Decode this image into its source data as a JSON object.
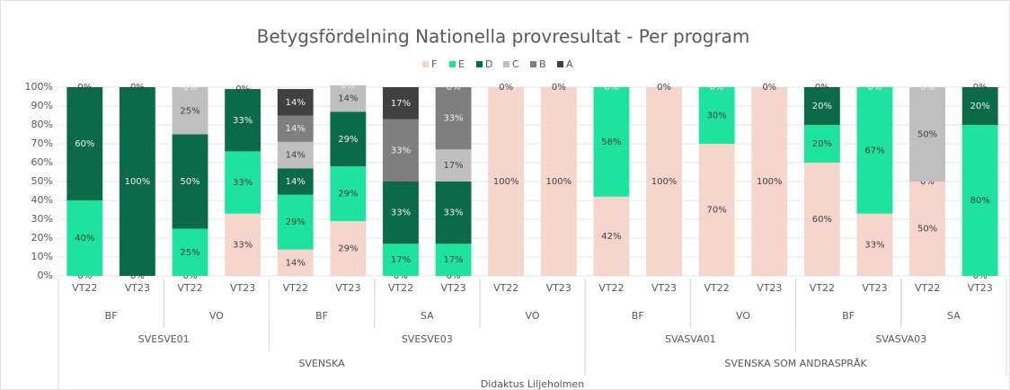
{
  "chart_data": {
    "type": "stacked_bar",
    "title": "Betygsfördelning Nationella provresultat - Per program",
    "outer_label": "Didaktus Liljeholmen",
    "ylim": [
      0,
      100
    ],
    "yticks": [
      {
        "value": 0,
        "label": "0%"
      },
      {
        "value": 10,
        "label": "10%"
      },
      {
        "value": 20,
        "label": "20%"
      },
      {
        "value": 30,
        "label": "30%"
      },
      {
        "value": 40,
        "label": "40%"
      },
      {
        "value": 50,
        "label": "50%"
      },
      {
        "value": 60,
        "label": "60%"
      },
      {
        "value": 70,
        "label": "70%"
      },
      {
        "value": 80,
        "label": "80%"
      },
      {
        "value": 90,
        "label": "90%"
      },
      {
        "value": 100,
        "label": "100%"
      }
    ],
    "legend": "top",
    "groups": [
      {
        "name": "SVENSKA",
        "children": [
          {
            "name": "SVESVE01",
            "children": [
              {
                "name": "BF",
                "categories": [
                  "VT22",
                  "VT23"
                ]
              },
              {
                "name": "VO",
                "categories": [
                  "VT22",
                  "VT23"
                ]
              }
            ]
          },
          {
            "name": "SVESVE03",
            "children": [
              {
                "name": "BF",
                "categories": [
                  "VT22",
                  "VT23"
                ]
              },
              {
                "name": "SA",
                "categories": [
                  "VT22",
                  "VT23"
                ]
              },
              {
                "name": "VO",
                "categories": [
                  "VT22",
                  "VT23"
                ]
              }
            ]
          }
        ]
      },
      {
        "name": "SVENSKA SOM ANDRASPRÅK",
        "children": [
          {
            "name": "SVASVA01",
            "children": [
              {
                "name": "BF",
                "categories": [
                  "VT22",
                  "VT23"
                ]
              },
              {
                "name": "VO",
                "categories": [
                  "VT22",
                  "VT23"
                ]
              }
            ]
          },
          {
            "name": "SVASVA03",
            "children": [
              {
                "name": "BF",
                "categories": [
                  "VT22",
                  "VT23"
                ]
              },
              {
                "name": "SA",
                "categories": [
                  "VT22",
                  "VT23"
                ]
              }
            ]
          }
        ]
      }
    ],
    "series": [
      {
        "name": "F",
        "color": "#f5d5cc",
        "values": [
          0,
          0,
          0,
          33,
          14,
          29,
          0,
          0,
          100,
          100,
          42,
          100,
          70,
          100,
          60,
          33,
          50,
          0
        ],
        "value_labels": [
          "0%",
          "0%",
          "0%",
          "33%",
          "14%",
          "29%",
          "0%",
          "0%",
          "100%",
          "100%",
          "42%",
          "100%",
          "70%",
          "100%",
          "60%",
          "33%",
          "50%",
          "0%"
        ]
      },
      {
        "name": "E",
        "color": "#1de39e",
        "values": [
          40,
          0,
          25,
          33,
          29,
          29,
          17,
          17,
          0,
          0,
          58,
          0,
          30,
          0,
          20,
          67,
          0,
          80
        ],
        "value_labels": [
          "40%",
          null,
          "25%",
          "33%",
          "29%",
          "29%",
          "17%",
          "17%",
          "0%",
          "0%",
          "58%",
          "0%",
          "30%",
          "0%",
          "20%",
          "67%",
          "0%",
          "80%"
        ]
      },
      {
        "name": "D",
        "color": "#0b6a48",
        "values": [
          60,
          100,
          50,
          33,
          14,
          29,
          33,
          33,
          0,
          0,
          0,
          0,
          0,
          0,
          20,
          0,
          0,
          20
        ],
        "value_labels": [
          "60%",
          "100%",
          "50%",
          "33%",
          "14%",
          "29%",
          "33%",
          "33%",
          null,
          null,
          "0%",
          null,
          "0%",
          null,
          "20%",
          "0%",
          null,
          "20%"
        ]
      },
      {
        "name": "C",
        "color": "#bfbfbf",
        "values": [
          0,
          0,
          25,
          0,
          14,
          14,
          0,
          17,
          0,
          0,
          0,
          0,
          0,
          0,
          0,
          0,
          50,
          0
        ],
        "value_labels": [
          "0%",
          "0%",
          "25%",
          "0%",
          "14%",
          "14%",
          "0%",
          "17%",
          null,
          null,
          null,
          null,
          null,
          null,
          "0%",
          null,
          "50%",
          "0%"
        ]
      },
      {
        "name": "B",
        "color": "#7f7f7f",
        "values": [
          0,
          0,
          0,
          0,
          14,
          0,
          33,
          33,
          0,
          0,
          0,
          0,
          0,
          0,
          0,
          0,
          0,
          0
        ],
        "value_labels": [
          null,
          null,
          "0%",
          null,
          "14%",
          "0%",
          "33%",
          "33%",
          null,
          null,
          null,
          null,
          null,
          null,
          null,
          null,
          "0%",
          null
        ]
      },
      {
        "name": "A",
        "color": "#404040",
        "values": [
          0,
          0,
          0,
          0,
          14,
          0,
          17,
          0,
          0,
          0,
          0,
          0,
          0,
          0,
          0,
          0,
          0,
          0
        ],
        "value_labels": [
          null,
          null,
          null,
          null,
          "14%",
          null,
          "17%",
          "0%",
          null,
          null,
          null,
          null,
          null,
          null,
          null,
          null,
          null,
          null
        ]
      }
    ]
  }
}
